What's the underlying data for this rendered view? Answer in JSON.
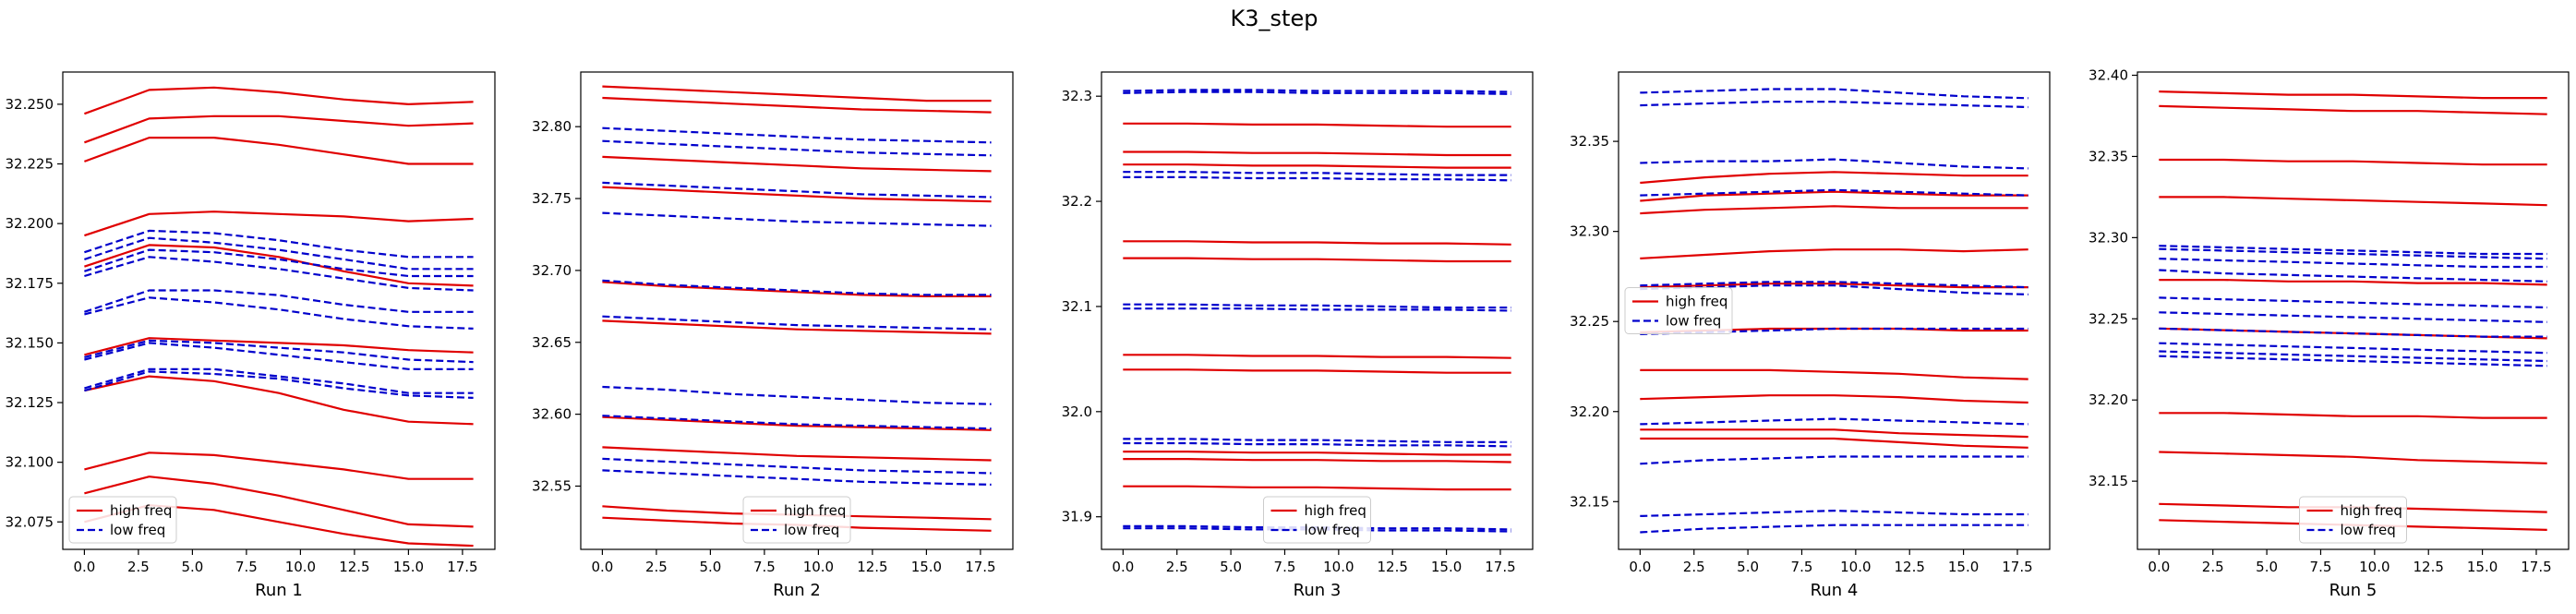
{
  "title": "K3_step",
  "colors": {
    "high": "#e00000",
    "low": "#0000cc",
    "axis": "#000000",
    "legend_border": "#cccccc"
  },
  "legend_labels": {
    "high": "high freq",
    "low": "low freq"
  },
  "chart_data": [
    {
      "type": "line",
      "xlabel": "Run 1",
      "xlim": [
        -1,
        19
      ],
      "ylim": [
        32.0635,
        32.2635
      ],
      "xticks": [
        0.0,
        2.5,
        5.0,
        7.5,
        10.0,
        12.5,
        15.0,
        17.5
      ],
      "xtick_labels": [
        "0.0",
        "2.5",
        "5.0",
        "7.5",
        "10.0",
        "12.5",
        "15.0",
        "17.5"
      ],
      "yticks": [
        32.075,
        32.1,
        32.125,
        32.15,
        32.175,
        32.2,
        32.225,
        32.25
      ],
      "ytick_labels": [
        "32.075",
        "32.100",
        "32.125",
        "32.150",
        "32.175",
        "32.200",
        "32.225",
        "32.250"
      ],
      "legend_loc": "lower-left",
      "x": [
        0,
        3,
        6,
        9,
        12,
        15,
        18
      ],
      "high": [
        [
          32.246,
          32.256,
          32.257,
          32.255,
          32.252,
          32.25,
          32.251
        ],
        [
          32.234,
          32.244,
          32.245,
          32.245,
          32.243,
          32.241,
          32.242
        ],
        [
          32.226,
          32.236,
          32.236,
          32.233,
          32.229,
          32.225,
          32.225
        ],
        [
          32.195,
          32.204,
          32.205,
          32.204,
          32.203,
          32.201,
          32.202
        ],
        [
          32.182,
          32.191,
          32.19,
          32.186,
          32.18,
          32.175,
          32.174
        ],
        [
          32.145,
          32.152,
          32.151,
          32.15,
          32.149,
          32.147,
          32.146
        ],
        [
          32.13,
          32.136,
          32.134,
          32.129,
          32.122,
          32.117,
          32.116
        ],
        [
          32.097,
          32.104,
          32.103,
          32.1,
          32.097,
          32.093,
          32.093
        ],
        [
          32.087,
          32.094,
          32.091,
          32.086,
          32.08,
          32.074,
          32.073
        ],
        [
          32.075,
          32.082,
          32.08,
          32.075,
          32.07,
          32.066,
          32.065
        ]
      ],
      "low": [
        [
          32.188,
          32.197,
          32.196,
          32.193,
          32.189,
          32.186,
          32.186
        ],
        [
          32.185,
          32.194,
          32.192,
          32.189,
          32.185,
          32.181,
          32.181
        ],
        [
          32.18,
          32.189,
          32.188,
          32.185,
          32.181,
          32.178,
          32.178
        ],
        [
          32.178,
          32.186,
          32.184,
          32.181,
          32.177,
          32.173,
          32.172
        ],
        [
          32.163,
          32.172,
          32.172,
          32.17,
          32.166,
          32.163,
          32.163
        ],
        [
          32.162,
          32.169,
          32.167,
          32.164,
          32.16,
          32.157,
          32.156
        ],
        [
          32.144,
          32.151,
          32.15,
          32.148,
          32.146,
          32.143,
          32.142
        ],
        [
          32.143,
          32.15,
          32.148,
          32.145,
          32.142,
          32.139,
          32.139
        ],
        [
          32.131,
          32.139,
          32.139,
          32.136,
          32.133,
          32.129,
          32.129
        ],
        [
          32.13,
          32.138,
          32.137,
          32.135,
          32.131,
          32.128,
          32.127
        ]
      ]
    },
    {
      "type": "line",
      "xlabel": "Run 2",
      "xlim": [
        -1,
        19
      ],
      "ylim": [
        32.506,
        32.838
      ],
      "xticks": [
        0.0,
        2.5,
        5.0,
        7.5,
        10.0,
        12.5,
        15.0,
        17.5
      ],
      "xtick_labels": [
        "0.0",
        "2.5",
        "5.0",
        "7.5",
        "10.0",
        "12.5",
        "15.0",
        "17.5"
      ],
      "yticks": [
        32.55,
        32.6,
        32.65,
        32.7,
        32.75,
        32.8
      ],
      "ytick_labels": [
        "32.55",
        "32.60",
        "32.65",
        "32.70",
        "32.75",
        "32.80"
      ],
      "legend_loc": "lower-center",
      "x": [
        0,
        3,
        6,
        9,
        12,
        15,
        18
      ],
      "high": [
        [
          32.828,
          32.826,
          32.824,
          32.822,
          32.82,
          32.818,
          32.818
        ],
        [
          32.82,
          32.818,
          32.816,
          32.814,
          32.812,
          32.811,
          32.81
        ],
        [
          32.779,
          32.777,
          32.775,
          32.773,
          32.771,
          32.77,
          32.769
        ],
        [
          32.758,
          32.756,
          32.754,
          32.752,
          32.75,
          32.749,
          32.748
        ],
        [
          32.692,
          32.689,
          32.687,
          32.685,
          32.683,
          32.682,
          32.682
        ],
        [
          32.665,
          32.663,
          32.661,
          32.659,
          32.658,
          32.657,
          32.656
        ],
        [
          32.598,
          32.596,
          32.594,
          32.592,
          32.591,
          32.59,
          32.589
        ],
        [
          32.577,
          32.575,
          32.573,
          32.571,
          32.57,
          32.569,
          32.568
        ],
        [
          32.536,
          32.533,
          32.531,
          32.53,
          32.529,
          32.528,
          32.527
        ],
        [
          32.528,
          32.526,
          32.524,
          32.523,
          32.521,
          32.52,
          32.519
        ]
      ],
      "low": [
        [
          32.799,
          32.797,
          32.795,
          32.793,
          32.791,
          32.79,
          32.789
        ],
        [
          32.79,
          32.788,
          32.786,
          32.784,
          32.782,
          32.781,
          32.78
        ],
        [
          32.761,
          32.759,
          32.757,
          32.755,
          32.753,
          32.752,
          32.751
        ],
        [
          32.74,
          32.738,
          32.736,
          32.734,
          32.733,
          32.732,
          32.731
        ],
        [
          32.693,
          32.69,
          32.688,
          32.686,
          32.684,
          32.683,
          32.683
        ],
        [
          32.668,
          32.666,
          32.664,
          32.662,
          32.661,
          32.66,
          32.659
        ],
        [
          32.619,
          32.617,
          32.614,
          32.612,
          32.61,
          32.608,
          32.607
        ],
        [
          32.599,
          32.597,
          32.595,
          32.593,
          32.592,
          32.591,
          32.59
        ],
        [
          32.569,
          32.567,
          32.565,
          32.563,
          32.561,
          32.56,
          32.559
        ],
        [
          32.561,
          32.559,
          32.557,
          32.555,
          32.553,
          32.552,
          32.551
        ]
      ]
    },
    {
      "type": "line",
      "xlabel": "Run 3",
      "xlim": [
        -1,
        19
      ],
      "ylim": [
        31.869,
        32.323
      ],
      "xticks": [
        0.0,
        2.5,
        5.0,
        7.5,
        10.0,
        12.5,
        15.0,
        17.5
      ],
      "xtick_labels": [
        "0.0",
        "2.5",
        "5.0",
        "7.5",
        "10.0",
        "12.5",
        "15.0",
        "17.5"
      ],
      "yticks": [
        31.9,
        32.0,
        32.1,
        32.2,
        32.3
      ],
      "ytick_labels": [
        "31.9",
        "32.0",
        "32.1",
        "32.2",
        "32.3"
      ],
      "legend_loc": "lower-center",
      "x": [
        0,
        3,
        6,
        9,
        12,
        15,
        18
      ],
      "high": [
        [
          32.274,
          32.274,
          32.273,
          32.273,
          32.272,
          32.271,
          32.271
        ],
        [
          32.247,
          32.247,
          32.246,
          32.246,
          32.245,
          32.244,
          32.244
        ],
        [
          32.235,
          32.235,
          32.234,
          32.234,
          32.233,
          32.232,
          32.232
        ],
        [
          32.162,
          32.162,
          32.161,
          32.161,
          32.16,
          32.16,
          32.159
        ],
        [
          32.146,
          32.146,
          32.145,
          32.145,
          32.144,
          32.143,
          32.143
        ],
        [
          32.054,
          32.054,
          32.053,
          32.053,
          32.052,
          32.052,
          32.051
        ],
        [
          32.04,
          32.04,
          32.039,
          32.039,
          32.038,
          32.037,
          32.037
        ],
        [
          31.962,
          31.962,
          31.961,
          31.961,
          31.96,
          31.959,
          31.959
        ],
        [
          31.955,
          31.955,
          31.954,
          31.954,
          31.953,
          31.953,
          31.952
        ],
        [
          31.929,
          31.929,
          31.928,
          31.928,
          31.927,
          31.926,
          31.926
        ]
      ],
      "low": [
        [
          32.305,
          32.306,
          32.306,
          32.305,
          32.305,
          32.305,
          32.304
        ],
        [
          32.303,
          32.304,
          32.304,
          32.303,
          32.303,
          32.303,
          32.302
        ],
        [
          32.228,
          32.228,
          32.227,
          32.227,
          32.226,
          32.225,
          32.225
        ],
        [
          32.223,
          32.223,
          32.222,
          32.222,
          32.221,
          32.221,
          32.22
        ],
        [
          32.102,
          32.102,
          32.101,
          32.101,
          32.1,
          32.099,
          32.099
        ],
        [
          32.098,
          32.098,
          32.098,
          32.097,
          32.097,
          32.097,
          32.096
        ],
        [
          31.974,
          31.974,
          31.973,
          31.973,
          31.972,
          31.971,
          31.971
        ],
        [
          31.97,
          31.97,
          31.969,
          31.969,
          31.968,
          31.968,
          31.967
        ],
        [
          31.891,
          31.891,
          31.89,
          31.89,
          31.889,
          31.889,
          31.888
        ],
        [
          31.889,
          31.889,
          31.888,
          31.888,
          31.887,
          31.887,
          31.886
        ]
      ]
    },
    {
      "type": "line",
      "xlabel": "Run 4",
      "xlim": [
        -1,
        19
      ],
      "ylim": [
        32.1235,
        32.3885
      ],
      "xticks": [
        0.0,
        2.5,
        5.0,
        7.5,
        10.0,
        12.5,
        15.0,
        17.5
      ],
      "xtick_labels": [
        "0.0",
        "2.5",
        "5.0",
        "7.5",
        "10.0",
        "12.5",
        "15.0",
        "17.5"
      ],
      "yticks": [
        32.15,
        32.2,
        32.25,
        32.3,
        32.35
      ],
      "ytick_labels": [
        "32.15",
        "32.20",
        "32.25",
        "32.30",
        "32.35"
      ],
      "legend_loc": "center-left",
      "x": [
        0,
        3,
        6,
        9,
        12,
        15,
        18
      ],
      "high": [
        [
          32.327,
          32.33,
          32.332,
          32.333,
          32.332,
          32.331,
          32.331
        ],
        [
          32.317,
          32.32,
          32.321,
          32.322,
          32.321,
          32.32,
          32.32
        ],
        [
          32.31,
          32.312,
          32.313,
          32.314,
          32.313,
          32.313,
          32.313
        ],
        [
          32.285,
          32.287,
          32.289,
          32.29,
          32.29,
          32.289,
          32.29
        ],
        [
          32.269,
          32.27,
          32.271,
          32.271,
          32.27,
          32.269,
          32.269
        ],
        [
          32.244,
          32.245,
          32.246,
          32.246,
          32.246,
          32.245,
          32.245
        ],
        [
          32.223,
          32.223,
          32.223,
          32.222,
          32.221,
          32.219,
          32.218
        ],
        [
          32.207,
          32.208,
          32.209,
          32.209,
          32.208,
          32.206,
          32.205
        ],
        [
          32.19,
          32.19,
          32.19,
          32.19,
          32.188,
          32.187,
          32.186
        ],
        [
          32.185,
          32.185,
          32.185,
          32.185,
          32.183,
          32.181,
          32.18
        ]
      ],
      "low": [
        [
          32.377,
          32.378,
          32.379,
          32.379,
          32.377,
          32.375,
          32.374
        ],
        [
          32.37,
          32.371,
          32.372,
          32.372,
          32.371,
          32.37,
          32.369
        ],
        [
          32.338,
          32.339,
          32.339,
          32.34,
          32.338,
          32.336,
          32.335
        ],
        [
          32.32,
          32.321,
          32.322,
          32.323,
          32.322,
          32.321,
          32.32
        ],
        [
          32.27,
          32.271,
          32.272,
          32.272,
          32.271,
          32.27,
          32.269
        ],
        [
          32.268,
          32.269,
          32.27,
          32.27,
          32.268,
          32.266,
          32.265
        ],
        [
          32.243,
          32.244,
          32.245,
          32.246,
          32.246,
          32.246,
          32.246
        ],
        [
          32.193,
          32.194,
          32.195,
          32.196,
          32.195,
          32.194,
          32.193
        ],
        [
          32.171,
          32.173,
          32.174,
          32.175,
          32.175,
          32.175,
          32.175
        ],
        [
          32.142,
          32.143,
          32.144,
          32.145,
          32.144,
          32.143,
          32.143
        ],
        [
          32.133,
          32.135,
          32.136,
          32.137,
          32.137,
          32.137,
          32.137
        ]
      ]
    },
    {
      "type": "line",
      "xlabel": "Run 5",
      "xlim": [
        -1,
        19
      ],
      "ylim": [
        32.108,
        32.402
      ],
      "xticks": [
        0.0,
        2.5,
        5.0,
        7.5,
        10.0,
        12.5,
        15.0,
        17.5
      ],
      "xtick_labels": [
        "0.0",
        "2.5",
        "5.0",
        "7.5",
        "10.0",
        "12.5",
        "15.0",
        "17.5"
      ],
      "yticks": [
        32.15,
        32.2,
        32.25,
        32.3,
        32.35,
        32.4
      ],
      "ytick_labels": [
        "32.15",
        "32.20",
        "32.25",
        "32.30",
        "32.35",
        "32.40"
      ],
      "legend_loc": "lower-center",
      "x": [
        0,
        3,
        6,
        9,
        12,
        15,
        18
      ],
      "high": [
        [
          32.39,
          32.389,
          32.388,
          32.388,
          32.387,
          32.386,
          32.386
        ],
        [
          32.381,
          32.38,
          32.379,
          32.378,
          32.378,
          32.377,
          32.376
        ],
        [
          32.348,
          32.348,
          32.347,
          32.347,
          32.346,
          32.345,
          32.345
        ],
        [
          32.325,
          32.325,
          32.324,
          32.323,
          32.322,
          32.321,
          32.32
        ],
        [
          32.274,
          32.274,
          32.273,
          32.273,
          32.272,
          32.272,
          32.271
        ],
        [
          32.244,
          32.243,
          32.242,
          32.241,
          32.24,
          32.239,
          32.238
        ],
        [
          32.192,
          32.192,
          32.191,
          32.19,
          32.19,
          32.189,
          32.189
        ],
        [
          32.168,
          32.167,
          32.166,
          32.165,
          32.163,
          32.162,
          32.161
        ],
        [
          32.136,
          32.135,
          32.134,
          32.134,
          32.133,
          32.132,
          32.131
        ],
        [
          32.126,
          32.125,
          32.124,
          32.123,
          32.122,
          32.121,
          32.12
        ]
      ],
      "low": [
        [
          32.295,
          32.294,
          32.293,
          32.292,
          32.291,
          32.29,
          32.29
        ],
        [
          32.293,
          32.292,
          32.291,
          32.29,
          32.289,
          32.288,
          32.287
        ],
        [
          32.287,
          32.286,
          32.285,
          32.284,
          32.283,
          32.282,
          32.282
        ],
        [
          32.28,
          32.278,
          32.277,
          32.276,
          32.275,
          32.274,
          32.273
        ],
        [
          32.263,
          32.262,
          32.261,
          32.26,
          32.259,
          32.258,
          32.257
        ],
        [
          32.254,
          32.253,
          32.252,
          32.251,
          32.25,
          32.249,
          32.248
        ],
        [
          32.244,
          32.243,
          32.242,
          32.241,
          32.24,
          32.239,
          32.239
        ],
        [
          32.235,
          32.234,
          32.233,
          32.232,
          32.231,
          32.23,
          32.229
        ],
        [
          32.23,
          32.229,
          32.228,
          32.227,
          32.226,
          32.225,
          32.224
        ],
        [
          32.227,
          32.226,
          32.225,
          32.224,
          32.223,
          32.222,
          32.221
        ]
      ]
    }
  ]
}
